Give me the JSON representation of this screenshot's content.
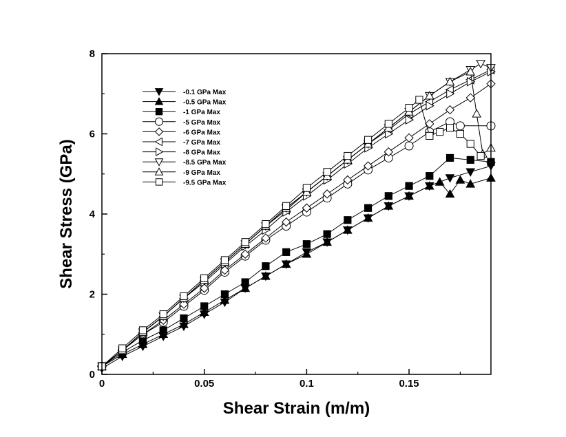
{
  "chart_data": {
    "type": "line",
    "title": "",
    "xlabel": "Shear Strain (m/m)",
    "ylabel": "Shear Stress (GPa)",
    "xlim": [
      0,
      0.19
    ],
    "ylim": [
      0,
      8
    ],
    "xticks": [
      0,
      0.05,
      0.1,
      0.15
    ],
    "xtick_labels": [
      "0",
      "0.05",
      "0.1",
      "0.15"
    ],
    "yticks": [
      0,
      2,
      4,
      6,
      8
    ],
    "ytick_labels": [
      "0",
      "2",
      "4",
      "6",
      "8"
    ],
    "legend_position": "top-left",
    "grid": false,
    "series": [
      {
        "name": "-0.1 GPa Max",
        "marker": "triangle-down",
        "filled": true,
        "x": [
          0,
          0.01,
          0.02,
          0.03,
          0.04,
          0.05,
          0.06,
          0.07,
          0.08,
          0.09,
          0.1,
          0.11,
          0.12,
          0.13,
          0.14,
          0.15,
          0.16,
          0.17,
          0.18,
          0.19
        ],
        "y": [
          0.15,
          0.45,
          0.7,
          0.95,
          1.2,
          1.5,
          1.8,
          2.15,
          2.45,
          2.75,
          3.05,
          3.3,
          3.6,
          3.9,
          4.2,
          4.45,
          4.7,
          4.9,
          5.05,
          5.2
        ]
      },
      {
        "name": "-0.5 GPa Max",
        "marker": "triangle-up",
        "filled": true,
        "x": [
          0,
          0.01,
          0.02,
          0.03,
          0.04,
          0.05,
          0.06,
          0.07,
          0.08,
          0.09,
          0.1,
          0.11,
          0.12,
          0.13,
          0.14,
          0.15,
          0.16,
          0.165,
          0.17,
          0.175,
          0.18,
          0.19
        ],
        "y": [
          0.2,
          0.5,
          0.75,
          1.0,
          1.25,
          1.55,
          1.85,
          2.15,
          2.45,
          2.75,
          3.0,
          3.3,
          3.6,
          3.9,
          4.2,
          4.45,
          4.7,
          4.8,
          4.5,
          4.85,
          4.75,
          4.9
        ]
      },
      {
        "name": "-1 GPa Max",
        "marker": "square",
        "filled": true,
        "x": [
          0,
          0.01,
          0.02,
          0.03,
          0.04,
          0.05,
          0.06,
          0.07,
          0.08,
          0.09,
          0.1,
          0.11,
          0.12,
          0.13,
          0.14,
          0.15,
          0.16,
          0.17,
          0.18,
          0.19
        ],
        "y": [
          0.2,
          0.55,
          0.85,
          1.1,
          1.4,
          1.7,
          2.0,
          2.3,
          2.7,
          3.05,
          3.25,
          3.5,
          3.85,
          4.15,
          4.45,
          4.7,
          4.95,
          5.4,
          5.35,
          5.3
        ]
      },
      {
        "name": "-5 GPa Max",
        "marker": "circle",
        "filled": false,
        "x": [
          0,
          0.01,
          0.02,
          0.03,
          0.04,
          0.05,
          0.06,
          0.07,
          0.08,
          0.09,
          0.1,
          0.11,
          0.12,
          0.13,
          0.14,
          0.15,
          0.16,
          0.17,
          0.175,
          0.19
        ],
        "y": [
          0.2,
          0.6,
          1.0,
          1.3,
          1.7,
          2.1,
          2.55,
          2.95,
          3.35,
          3.7,
          4.05,
          4.4,
          4.75,
          5.1,
          5.4,
          5.7,
          6.05,
          6.3,
          6.2,
          6.2
        ]
      },
      {
        "name": "-6 GPa Max",
        "marker": "diamond",
        "filled": false,
        "x": [
          0,
          0.01,
          0.02,
          0.03,
          0.04,
          0.05,
          0.06,
          0.07,
          0.08,
          0.09,
          0.1,
          0.11,
          0.12,
          0.13,
          0.14,
          0.15,
          0.16,
          0.17,
          0.18,
          0.19
        ],
        "y": [
          0.2,
          0.6,
          1.0,
          1.35,
          1.75,
          2.15,
          2.6,
          3.0,
          3.4,
          3.8,
          4.15,
          4.5,
          4.85,
          5.2,
          5.55,
          5.9,
          6.25,
          6.6,
          6.9,
          7.25
        ]
      },
      {
        "name": "-7 GPa Max",
        "marker": "triangle-left",
        "filled": false,
        "x": [
          0,
          0.01,
          0.02,
          0.03,
          0.04,
          0.05,
          0.06,
          0.07,
          0.08,
          0.09,
          0.1,
          0.11,
          0.12,
          0.13,
          0.14,
          0.15,
          0.16,
          0.17,
          0.18,
          0.19
        ],
        "y": [
          0.2,
          0.6,
          1.05,
          1.45,
          1.9,
          2.35,
          2.8,
          3.25,
          3.7,
          4.1,
          4.55,
          4.95,
          5.35,
          5.75,
          6.1,
          6.5,
          6.8,
          7.1,
          7.35,
          7.6
        ]
      },
      {
        "name": "-8 GPa Max",
        "marker": "triangle-right",
        "filled": false,
        "x": [
          0,
          0.01,
          0.02,
          0.03,
          0.04,
          0.05,
          0.06,
          0.07,
          0.08,
          0.09,
          0.1,
          0.11,
          0.12,
          0.13,
          0.14,
          0.15,
          0.16,
          0.17,
          0.18,
          0.19
        ],
        "y": [
          0.2,
          0.6,
          1.05,
          1.45,
          1.9,
          2.3,
          2.75,
          3.2,
          3.6,
          4.05,
          4.45,
          4.85,
          5.25,
          5.65,
          6.0,
          6.35,
          6.7,
          7.0,
          7.3,
          7.55
        ]
      },
      {
        "name": "-8.5 GPa Max",
        "marker": "triangle-down",
        "filled": false,
        "x": [
          0,
          0.01,
          0.02,
          0.03,
          0.04,
          0.05,
          0.06,
          0.07,
          0.08,
          0.09,
          0.1,
          0.11,
          0.12,
          0.13,
          0.14,
          0.15,
          0.16,
          0.17,
          0.18,
          0.185,
          0.19
        ],
        "y": [
          0.2,
          0.6,
          1.05,
          1.45,
          1.9,
          2.35,
          2.8,
          3.25,
          3.7,
          4.15,
          4.55,
          4.95,
          5.35,
          5.75,
          6.15,
          6.55,
          6.95,
          7.3,
          7.6,
          7.75,
          7.65
        ]
      },
      {
        "name": "-9 GPa Max",
        "marker": "triangle-up",
        "filled": false,
        "x": [
          0,
          0.01,
          0.02,
          0.03,
          0.04,
          0.05,
          0.06,
          0.07,
          0.08,
          0.09,
          0.1,
          0.11,
          0.12,
          0.13,
          0.14,
          0.15,
          0.16,
          0.17,
          0.18,
          0.183,
          0.186,
          0.19
        ],
        "y": [
          0.2,
          0.6,
          1.05,
          1.45,
          1.9,
          2.35,
          2.8,
          3.25,
          3.7,
          4.15,
          4.55,
          4.95,
          5.35,
          5.75,
          6.15,
          6.55,
          6.95,
          7.3,
          7.55,
          6.5,
          5.5,
          5.65
        ]
      },
      {
        "name": "-9.5 GPa Max",
        "marker": "square",
        "filled": false,
        "x": [
          0,
          0.01,
          0.02,
          0.03,
          0.04,
          0.05,
          0.06,
          0.07,
          0.08,
          0.09,
          0.1,
          0.11,
          0.12,
          0.13,
          0.14,
          0.15,
          0.155,
          0.16,
          0.165,
          0.17,
          0.175,
          0.18,
          0.185
        ],
        "y": [
          0.2,
          0.65,
          1.1,
          1.5,
          1.95,
          2.4,
          2.85,
          3.3,
          3.75,
          4.2,
          4.65,
          5.05,
          5.45,
          5.85,
          6.25,
          6.65,
          6.85,
          5.95,
          6.05,
          6.15,
          6.0,
          5.75,
          5.45
        ]
      }
    ]
  }
}
